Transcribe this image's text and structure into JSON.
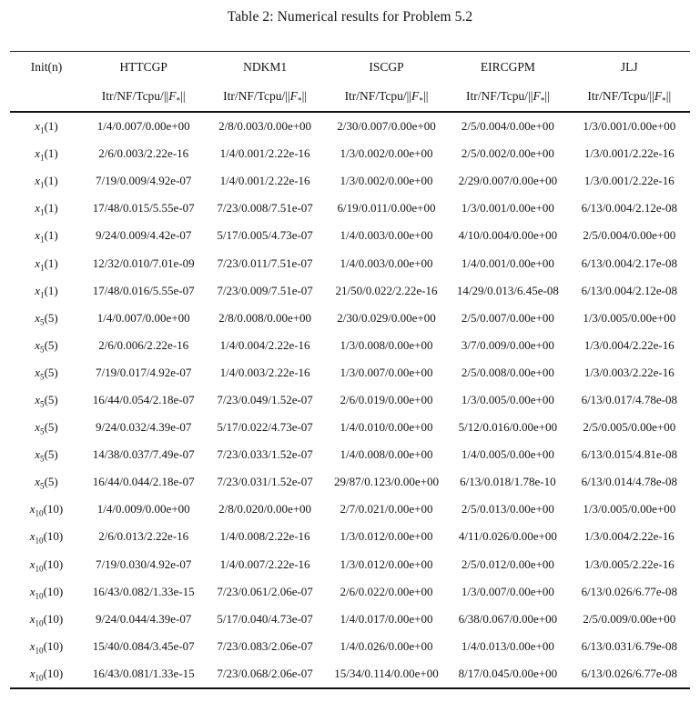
{
  "caption": "Table 2: Numerical results for Problem 5.2",
  "table": {
    "init_header": "Init(n)",
    "methods": [
      "HTTCGP",
      "NDKM1",
      "ISCGP",
      "EIRCGPM",
      "JLJ"
    ],
    "metric_subheader": {
      "prefix": "Itr/NF/Tcpu/",
      "norm_open": "||",
      "symbol": "F",
      "subscript": "*",
      "norm_close": "||"
    },
    "rows": [
      {
        "init": {
          "var": "x",
          "sub": "1",
          "arg": "(1)"
        },
        "cells": [
          "1/4/0.007/0.00e+00",
          "2/8/0.003/0.00e+00",
          "2/30/0.007/0.00e+00",
          "2/5/0.004/0.00e+00",
          "1/3/0.001/0.00e+00"
        ]
      },
      {
        "init": {
          "var": "x",
          "sub": "1",
          "arg": "(1)"
        },
        "cells": [
          "2/6/0.003/2.22e-16",
          "1/4/0.001/2.22e-16",
          "1/3/0.002/0.00e+00",
          "2/5/0.002/0.00e+00",
          "1/3/0.001/2.22e-16"
        ]
      },
      {
        "init": {
          "var": "x",
          "sub": "1",
          "arg": "(1)"
        },
        "cells": [
          "7/19/0.009/4.92e-07",
          "1/4/0.001/2.22e-16",
          "1/3/0.002/0.00e+00",
          "2/29/0.007/0.00e+00",
          "1/3/0.001/2.22e-16"
        ]
      },
      {
        "init": {
          "var": "x",
          "sub": "1",
          "arg": "(1)"
        },
        "cells": [
          "17/48/0.015/5.55e-07",
          "7/23/0.008/7.51e-07",
          "6/19/0.011/0.00e+00",
          "1/3/0.001/0.00e+00",
          "6/13/0.004/2.12e-08"
        ]
      },
      {
        "init": {
          "var": "x",
          "sub": "1",
          "arg": "(1)"
        },
        "cells": [
          "9/24/0.009/4.42e-07",
          "5/17/0.005/4.73e-07",
          "1/4/0.003/0.00e+00",
          "4/10/0.004/0.00e+00",
          "2/5/0.004/0.00e+00"
        ]
      },
      {
        "init": {
          "var": "x",
          "sub": "1",
          "arg": "(1)"
        },
        "cells": [
          "12/32/0.010/7.01e-09",
          "7/23/0.011/7.51e-07",
          "1/4/0.003/0.00e+00",
          "1/4/0.001/0.00e+00",
          "6/13/0.004/2.17e-08"
        ]
      },
      {
        "init": {
          "var": "x",
          "sub": "1",
          "arg": "(1)"
        },
        "cells": [
          "17/48/0.016/5.55e-07",
          "7/23/0.009/7.51e-07",
          "21/50/0.022/2.22e-16",
          "14/29/0.013/6.45e-08",
          "6/13/0.004/2.12e-08"
        ]
      },
      {
        "init": {
          "var": "x",
          "sub": "5",
          "arg": "(5)"
        },
        "cells": [
          "1/4/0.007/0.00e+00",
          "2/8/0.008/0.00e+00",
          "2/30/0.029/0.00e+00",
          "2/5/0.007/0.00e+00",
          "1/3/0.005/0.00e+00"
        ]
      },
      {
        "init": {
          "var": "x",
          "sub": "5",
          "arg": "(5)"
        },
        "cells": [
          "2/6/0.006/2.22e-16",
          "1/4/0.004/2.22e-16",
          "1/3/0.008/0.00e+00",
          "3/7/0.009/0.00e+00",
          "1/3/0.004/2.22e-16"
        ]
      },
      {
        "init": {
          "var": "x",
          "sub": "5",
          "arg": "(5)"
        },
        "cells": [
          "7/19/0.017/4.92e-07",
          "1/4/0.003/2.22e-16",
          "1/3/0.007/0.00e+00",
          "2/5/0.008/0.00e+00",
          "1/3/0.003/2.22e-16"
        ]
      },
      {
        "init": {
          "var": "x",
          "sub": "5",
          "arg": "(5)"
        },
        "cells": [
          "16/44/0.054/2.18e-07",
          "7/23/0.049/1.52e-07",
          "2/6/0.019/0.00e+00",
          "1/3/0.005/0.00e+00",
          "6/13/0.017/4.78e-08"
        ]
      },
      {
        "init": {
          "var": "x",
          "sub": "5",
          "arg": "(5)"
        },
        "cells": [
          "9/24/0.032/4.39e-07",
          "5/17/0.022/4.73e-07",
          "1/4/0.010/0.00e+00",
          "5/12/0.016/0.00e+00",
          "2/5/0.005/0.00e+00"
        ]
      },
      {
        "init": {
          "var": "x",
          "sub": "5",
          "arg": "(5)"
        },
        "cells": [
          "14/38/0.037/7.49e-07",
          "7/23/0.033/1.52e-07",
          "1/4/0.008/0.00e+00",
          "1/4/0.005/0.00e+00",
          "6/13/0.015/4.81e-08"
        ]
      },
      {
        "init": {
          "var": "x",
          "sub": "5",
          "arg": "(5)"
        },
        "cells": [
          "16/44/0.044/2.18e-07",
          "7/23/0.031/1.52e-07",
          "29/87/0.123/0.00e+00",
          "6/13/0.018/1.78e-10",
          "6/13/0.014/4.78e-08"
        ]
      },
      {
        "init": {
          "var": "x",
          "sub": "10",
          "arg": "(10)"
        },
        "cells": [
          "1/4/0.009/0.00e+00",
          "2/8/0.020/0.00e+00",
          "2/7/0.021/0.00e+00",
          "2/5/0.013/0.00e+00",
          "1/3/0.005/0.00e+00"
        ]
      },
      {
        "init": {
          "var": "x",
          "sub": "10",
          "arg": "(10)"
        },
        "cells": [
          "2/6/0.013/2.22e-16",
          "1/4/0.008/2.22e-16",
          "1/3/0.012/0.00e+00",
          "4/11/0.026/0.00e+00",
          "1/3/0.004/2.22e-16"
        ]
      },
      {
        "init": {
          "var": "x",
          "sub": "10",
          "arg": "(10)"
        },
        "cells": [
          "7/19/0.030/4.92e-07",
          "1/4/0.007/2.22e-16",
          "1/3/0.012/0.00e+00",
          "2/5/0.012/0.00e+00",
          "1/3/0.005/2.22e-16"
        ]
      },
      {
        "init": {
          "var": "x",
          "sub": "10",
          "arg": "(10)"
        },
        "cells": [
          "16/43/0.082/1.33e-15",
          "7/23/0.061/2.06e-07",
          "2/6/0.022/0.00e+00",
          "1/3/0.007/0.00e+00",
          "6/13/0.026/6.77e-08"
        ]
      },
      {
        "init": {
          "var": "x",
          "sub": "10",
          "arg": "(10)"
        },
        "cells": [
          "9/24/0.044/4.39e-07",
          "5/17/0.040/4.73e-07",
          "1/4/0.017/0.00e+00",
          "6/38/0.067/0.00e+00",
          "2/5/0.009/0.00e+00"
        ]
      },
      {
        "init": {
          "var": "x",
          "sub": "10",
          "arg": "(10)"
        },
        "cells": [
          "15/40/0.084/3.45e-07",
          "7/23/0.083/2.06e-07",
          "1/4/0.026/0.00e+00",
          "1/4/0.013/0.00e+00",
          "6/13/0.031/6.79e-08"
        ]
      },
      {
        "init": {
          "var": "x",
          "sub": "10",
          "arg": "(10)"
        },
        "cells": [
          "16/43/0.081/1.33e-15",
          "7/23/0.068/2.06e-07",
          "15/34/0.114/0.00e+00",
          "8/17/0.045/0.00e+00",
          "6/13/0.026/6.77e-08"
        ]
      }
    ]
  }
}
